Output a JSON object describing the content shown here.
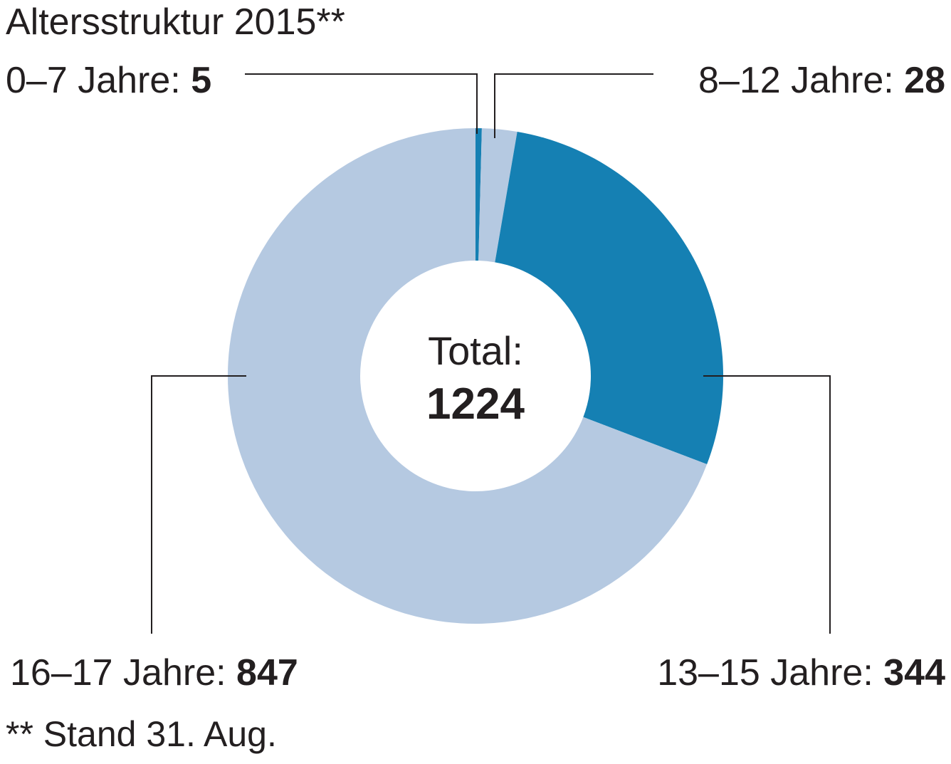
{
  "title": "Altersstruktur 2015**",
  "footnote": "** Stand 31. Aug.",
  "center": {
    "label": "Total:",
    "value": "1224"
  },
  "colors": {
    "dark": "#1580b3",
    "light": "#b5c9e1",
    "text": "#231f20",
    "leader": "#231f20"
  },
  "chart_data": {
    "type": "pie",
    "donut": true,
    "title": "Altersstruktur 2015**",
    "total": 1224,
    "start_angle_deg": 0,
    "direction": "clockwise",
    "slices": [
      {
        "label": "0–7 Jahre:",
        "value": 5,
        "value_text": "5",
        "color": "#1580b3"
      },
      {
        "label": "8–12 Jahre:",
        "value": 28,
        "value_text": "28",
        "color": "#b5c9e1"
      },
      {
        "label": "13–15 Jahre:",
        "value": 344,
        "value_text": "344",
        "color": "#1580b3"
      },
      {
        "label": "16–17 Jahre:",
        "value": 847,
        "value_text": "847",
        "color": "#b5c9e1"
      }
    ]
  }
}
